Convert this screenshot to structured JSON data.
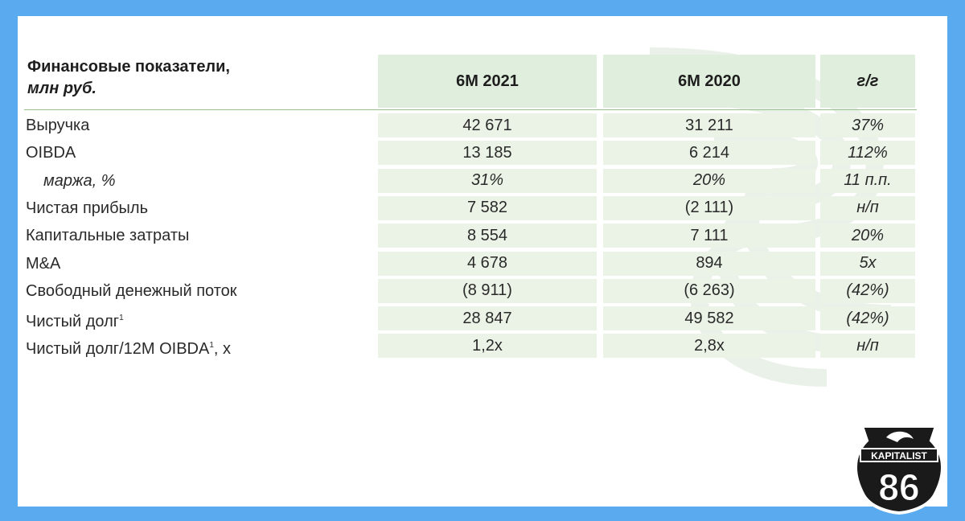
{
  "header": {
    "label_line1": "Финансовые показатели,",
    "label_line2": "млн руб.",
    "col1": "6M 2021",
    "col2": "6M 2020",
    "col3": "г/г"
  },
  "rows": [
    {
      "label": "Выручка",
      "v1": "42 671",
      "v2": "31 211",
      "v3": "37%"
    },
    {
      "label": "OIBDA",
      "v1": "13 185",
      "v2": "6 214",
      "v3": "112%"
    },
    {
      "label": "маржа, %",
      "v1": "31%",
      "v2": "20%",
      "v3": "11 п.п."
    },
    {
      "label": "Чистая прибыль",
      "v1": "7 582",
      "v2": "(2 111)",
      "v3": "н/п"
    },
    {
      "label": "Капитальные затраты",
      "v1": "8 554",
      "v2": "7 111",
      "v3": "20%"
    },
    {
      "label": "M&A",
      "v1": "4 678",
      "v2": "894",
      "v3": "5x"
    },
    {
      "label": "Свободный денежный поток",
      "v1": "(8 911)",
      "v2": "(6 263)",
      "v3": "(42%)"
    },
    {
      "label": "Чистый долг",
      "sup": "1",
      "v1": "28 847",
      "v2": "49 582",
      "v3": "(42%)"
    },
    {
      "label": "Чистый долг/12M OIBDA",
      "sup": "1",
      "suffix": ", x",
      "v1": "1,2x",
      "v2": "2,8x",
      "v3": "н/п"
    }
  ],
  "logo": {
    "top_text": "KAPITALIST",
    "number": "86"
  },
  "colors": {
    "frame": "#5aaaf0",
    "header_fill": "#e0eedd",
    "cell_fill": "#eaf3e6",
    "rule": "#97c08b"
  }
}
